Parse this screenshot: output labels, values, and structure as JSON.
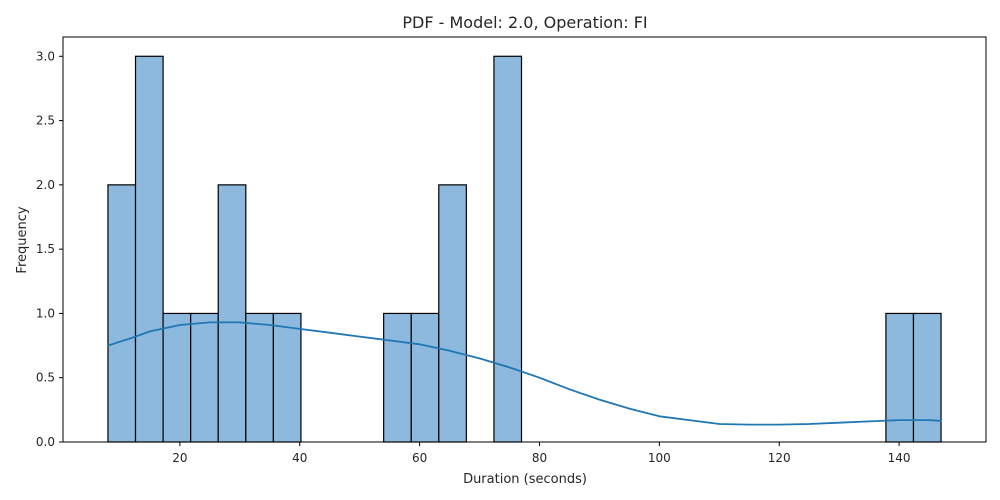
{
  "chart_data": {
    "type": "bar",
    "title": "PDF - Model: 2.0, Operation: FI",
    "xlabel": "Duration (seconds)",
    "ylabel": "Frequency",
    "xlim": [
      0.5,
      154.5
    ],
    "ylim": [
      0,
      3.15
    ],
    "xticks": [
      20,
      40,
      60,
      80,
      100,
      120,
      140
    ],
    "yticks": [
      0.0,
      0.5,
      1.0,
      1.5,
      2.0,
      2.5,
      3.0
    ],
    "ytick_labels": [
      "0.0",
      "0.5",
      "1.0",
      "1.5",
      "2.0",
      "2.5",
      "3.0"
    ],
    "bins": [
      {
        "x0": 8.0,
        "x1": 12.6,
        "count": 2
      },
      {
        "x0": 12.6,
        "x1": 17.2,
        "count": 3
      },
      {
        "x0": 17.2,
        "x1": 21.8,
        "count": 1
      },
      {
        "x0": 21.8,
        "x1": 26.4,
        "count": 1
      },
      {
        "x0": 26.4,
        "x1": 31.0,
        "count": 2
      },
      {
        "x0": 31.0,
        "x1": 35.6,
        "count": 1
      },
      {
        "x0": 35.6,
        "x1": 40.2,
        "count": 1
      },
      {
        "x0": 54.0,
        "x1": 58.6,
        "count": 1
      },
      {
        "x0": 58.6,
        "x1": 63.2,
        "count": 1
      },
      {
        "x0": 63.2,
        "x1": 67.8,
        "count": 2
      },
      {
        "x0": 72.4,
        "x1": 77.0,
        "count": 3
      },
      {
        "x0": 137.8,
        "x1": 142.4,
        "count": 1
      },
      {
        "x0": 142.4,
        "x1": 147.0,
        "count": 1
      }
    ],
    "kde": {
      "x": [
        8,
        10,
        12,
        15,
        20,
        25,
        30,
        35,
        40,
        45,
        50,
        55,
        60,
        65,
        70,
        75,
        80,
        85,
        90,
        95,
        100,
        105,
        110,
        115,
        120,
        125,
        130,
        135,
        140,
        145,
        147
      ],
      "y": [
        0.75,
        0.78,
        0.81,
        0.86,
        0.91,
        0.93,
        0.93,
        0.91,
        0.88,
        0.85,
        0.82,
        0.79,
        0.76,
        0.71,
        0.65,
        0.58,
        0.5,
        0.41,
        0.33,
        0.26,
        0.2,
        0.17,
        0.14,
        0.135,
        0.135,
        0.14,
        0.15,
        0.16,
        0.17,
        0.17,
        0.165
      ]
    },
    "colors": {
      "bar_fill": "#8cb9dd",
      "bar_edge": "#000000",
      "kde_line": "#1f77b4"
    },
    "grid": false,
    "legend": "none"
  }
}
